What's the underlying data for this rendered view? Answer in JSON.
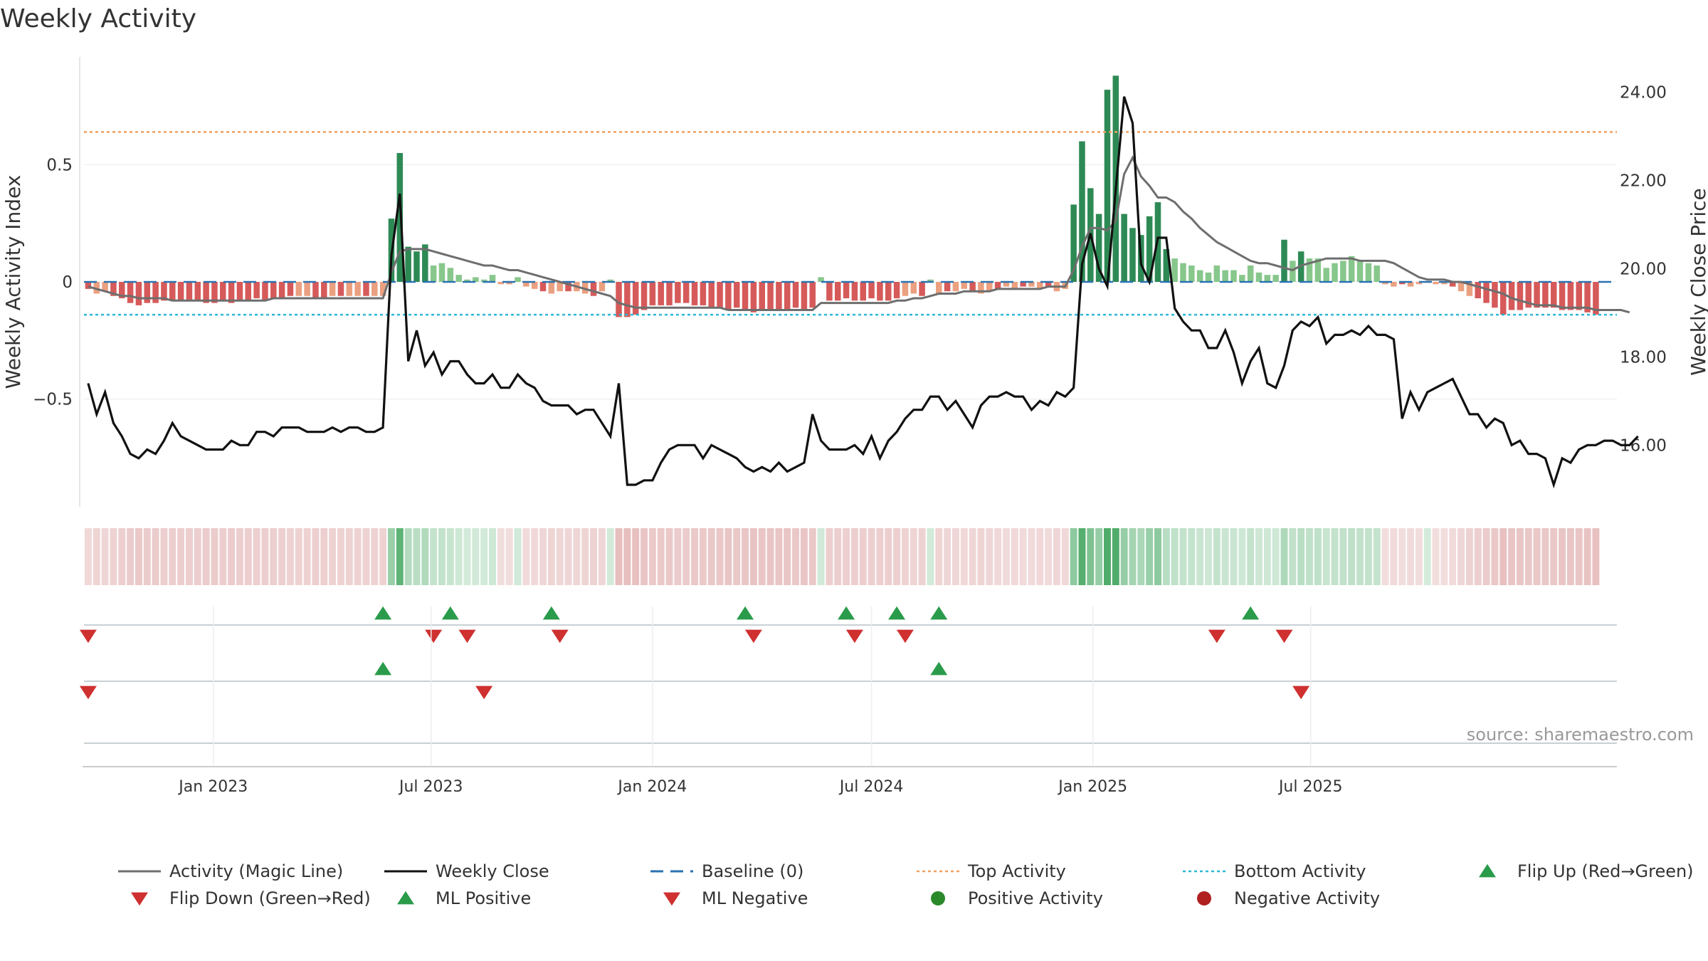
{
  "chart_data": {
    "type": "bar",
    "title": "Weekly Activity",
    "ylabel_left": "Weekly Activity Index",
    "ylabel_right": "Weekly Close Price",
    "source": "source: sharemaestro.com",
    "x_ticks": [
      "Jan 2023",
      "Jul 2023",
      "Jan 2024",
      "Jul 2024",
      "Jan 2025",
      "Jul 2025"
    ],
    "y_left_ticks": [
      "0.5",
      "0",
      "−0.5"
    ],
    "y_right_ticks": [
      "24.00",
      "22.00",
      "20.00",
      "18.00",
      "16.00"
    ],
    "y_left_range": [
      -0.96,
      0.96
    ],
    "y_right_range": [
      14.6,
      24.8
    ],
    "top_activity": 0.64,
    "bottom_activity": -0.14,
    "baseline": 0,
    "weeks": 182,
    "start_date": "2022-09-19",
    "activity_bars": [
      -0.03,
      -0.05,
      -0.04,
      -0.06,
      -0.07,
      -0.09,
      -0.1,
      -0.09,
      -0.09,
      -0.08,
      -0.08,
      -0.08,
      -0.08,
      -0.08,
      -0.09,
      -0.09,
      -0.08,
      -0.09,
      -0.08,
      -0.08,
      -0.07,
      -0.08,
      -0.07,
      -0.07,
      -0.06,
      -0.06,
      -0.06,
      -0.07,
      -0.07,
      -0.06,
      -0.06,
      -0.06,
      -0.06,
      -0.06,
      -0.06,
      -0.06,
      0.27,
      0.55,
      0.15,
      0.13,
      0.16,
      0.07,
      0.08,
      0.06,
      0.03,
      0.01,
      0.02,
      0.01,
      0.03,
      -0.01,
      -0.01,
      0.02,
      -0.02,
      -0.03,
      -0.04,
      -0.05,
      -0.04,
      -0.04,
      -0.04,
      -0.05,
      -0.06,
      -0.04,
      0.01,
      -0.15,
      -0.15,
      -0.14,
      -0.12,
      -0.1,
      -0.1,
      -0.1,
      -0.09,
      -0.09,
      -0.1,
      -0.1,
      -0.11,
      -0.11,
      -0.12,
      -0.11,
      -0.12,
      -0.13,
      -0.12,
      -0.12,
      -0.12,
      -0.12,
      -0.11,
      -0.12,
      -0.11,
      0.02,
      -0.08,
      -0.08,
      -0.07,
      -0.08,
      -0.08,
      -0.07,
      -0.08,
      -0.08,
      -0.07,
      -0.06,
      -0.05,
      -0.06,
      0.01,
      -0.05,
      -0.04,
      -0.04,
      -0.03,
      -0.04,
      -0.05,
      -0.04,
      -0.03,
      -0.02,
      -0.03,
      -0.02,
      -0.02,
      -0.03,
      -0.02,
      -0.04,
      -0.03,
      0.33,
      0.6,
      0.4,
      0.29,
      0.82,
      0.88,
      0.29,
      0.23,
      0.2,
      0.28,
      0.34,
      0.14,
      0.1,
      0.08,
      0.07,
      0.05,
      0.04,
      0.07,
      0.05,
      0.05,
      0.03,
      0.07,
      0.04,
      0.03,
      0.03,
      0.18,
      0.09,
      0.13,
      0.1,
      0.1,
      0.06,
      0.08,
      0.09,
      0.11,
      0.09,
      0.08,
      0.07,
      -0.01,
      -0.02,
      -0.01,
      -0.02,
      -0.01,
      0.0,
      -0.01,
      -0.01,
      -0.02,
      -0.04,
      -0.06,
      -0.07,
      -0.09,
      -0.11,
      -0.14,
      -0.12,
      -0.12,
      -0.11,
      -0.11,
      -0.11,
      -0.11,
      -0.12,
      -0.12,
      -0.12,
      -0.13,
      -0.14
    ],
    "magic_line": [
      -0.02,
      -0.03,
      -0.04,
      -0.05,
      -0.06,
      -0.06,
      -0.07,
      -0.07,
      -0.07,
      -0.07,
      -0.08,
      -0.08,
      -0.08,
      -0.08,
      -0.08,
      -0.08,
      -0.08,
      -0.08,
      -0.08,
      -0.08,
      -0.08,
      -0.08,
      -0.07,
      -0.07,
      -0.07,
      -0.07,
      -0.07,
      -0.07,
      -0.07,
      -0.07,
      -0.07,
      -0.07,
      -0.07,
      -0.07,
      -0.07,
      -0.07,
      0.04,
      0.13,
      0.14,
      0.14,
      0.14,
      0.13,
      0.12,
      0.11,
      0.1,
      0.09,
      0.08,
      0.07,
      0.07,
      0.06,
      0.05,
      0.05,
      0.04,
      0.03,
      0.02,
      0.01,
      0.0,
      -0.01,
      -0.02,
      -0.03,
      -0.04,
      -0.05,
      -0.06,
      -0.09,
      -0.1,
      -0.11,
      -0.11,
      -0.11,
      -0.11,
      -0.11,
      -0.11,
      -0.11,
      -0.11,
      -0.11,
      -0.11,
      -0.11,
      -0.12,
      -0.12,
      -0.12,
      -0.12,
      -0.12,
      -0.12,
      -0.12,
      -0.12,
      -0.12,
      -0.12,
      -0.12,
      -0.09,
      -0.09,
      -0.09,
      -0.09,
      -0.09,
      -0.09,
      -0.09,
      -0.09,
      -0.09,
      -0.08,
      -0.08,
      -0.07,
      -0.07,
      -0.06,
      -0.05,
      -0.05,
      -0.05,
      -0.04,
      -0.04,
      -0.04,
      -0.04,
      -0.03,
      -0.03,
      -0.03,
      -0.03,
      -0.03,
      -0.03,
      -0.02,
      -0.02,
      -0.02,
      0.05,
      0.15,
      0.23,
      0.23,
      0.22,
      0.26,
      0.46,
      0.53,
      0.45,
      0.41,
      0.36,
      0.36,
      0.34,
      0.3,
      0.27,
      0.23,
      0.2,
      0.17,
      0.15,
      0.13,
      0.11,
      0.09,
      0.08,
      0.08,
      0.07,
      0.06,
      0.05,
      0.07,
      0.08,
      0.09,
      0.1,
      0.1,
      0.1,
      0.1,
      0.09,
      0.09,
      0.09,
      0.09,
      0.08,
      0.06,
      0.04,
      0.02,
      0.01,
      0.01,
      0.01,
      0.0,
      0.0,
      -0.01,
      -0.02,
      -0.03,
      -0.04,
      -0.05,
      -0.07,
      -0.08,
      -0.09,
      -0.1,
      -0.1,
      -0.1,
      -0.11,
      -0.11,
      -0.11,
      -0.11,
      -0.12,
      -0.12,
      -0.12,
      -0.12,
      -0.13
    ],
    "weekly_close": [
      17.4,
      16.7,
      17.2,
      16.5,
      16.2,
      15.8,
      15.7,
      15.9,
      15.8,
      16.1,
      16.5,
      16.2,
      16.1,
      16.0,
      15.9,
      15.9,
      15.9,
      16.1,
      16.0,
      16.0,
      16.3,
      16.3,
      16.2,
      16.4,
      16.4,
      16.4,
      16.3,
      16.3,
      16.3,
      16.4,
      16.3,
      16.4,
      16.4,
      16.3,
      16.3,
      16.4,
      20.3,
      21.7,
      17.9,
      18.6,
      17.8,
      18.1,
      17.6,
      17.9,
      17.9,
      17.6,
      17.4,
      17.4,
      17.6,
      17.3,
      17.3,
      17.6,
      17.4,
      17.3,
      17.0,
      16.9,
      16.9,
      16.9,
      16.7,
      16.8,
      16.8,
      16.5,
      16.2,
      17.4,
      15.1,
      15.1,
      15.2,
      15.2,
      15.6,
      15.9,
      16.0,
      16.0,
      16.0,
      15.7,
      16.0,
      15.9,
      15.8,
      15.7,
      15.5,
      15.4,
      15.5,
      15.4,
      15.6,
      15.4,
      15.5,
      15.6,
      16.7,
      16.1,
      15.9,
      15.9,
      15.9,
      16.0,
      15.8,
      16.2,
      15.7,
      16.1,
      16.3,
      16.6,
      16.8,
      16.8,
      17.1,
      17.1,
      16.8,
      17.0,
      16.7,
      16.4,
      16.9,
      17.1,
      17.1,
      17.2,
      17.1,
      17.1,
      16.8,
      17.0,
      16.9,
      17.2,
      17.1,
      17.3,
      20.1,
      20.8,
      20.0,
      19.6,
      21.8,
      23.9,
      23.3,
      20.1,
      19.7,
      20.7,
      20.7,
      19.1,
      18.8,
      18.6,
      18.6,
      18.2,
      18.2,
      18.6,
      18.1,
      17.4,
      17.9,
      18.2,
      17.4,
      17.3,
      17.8,
      18.6,
      18.8,
      18.7,
      18.9,
      18.3,
      18.5,
      18.5,
      18.6,
      18.5,
      18.7,
      18.5,
      18.5,
      18.4,
      16.6,
      17.2,
      16.8,
      17.2,
      17.3,
      17.4,
      17.5,
      17.1,
      16.7,
      16.7,
      16.4,
      16.6,
      16.5,
      16.0,
      16.1,
      15.8,
      15.8,
      15.7,
      15.1,
      15.7,
      15.6,
      15.9,
      16.0,
      16.0,
      16.1,
      16.1,
      16.0,
      16.0,
      16.2
    ],
    "flip_up": [
      "2023-05-22",
      "2023-07-17",
      "2023-10-09",
      "2024-03-18",
      "2024-06-10",
      "2024-07-22",
      "2024-08-26",
      "2025-05-12"
    ],
    "flip_down": [
      "2022-09-19",
      "2023-07-03",
      "2023-07-31",
      "2023-10-16",
      "2024-03-25",
      "2024-06-17",
      "2024-07-29",
      "2025-04-14",
      "2025-06-09"
    ],
    "ml_positive": [
      "2023-05-22",
      "2024-08-26"
    ],
    "ml_negative": [
      "2022-09-19",
      "2023-08-14",
      "2025-06-23"
    ],
    "legend": [
      {
        "label": "Activity (Magic Line)",
        "style": "line",
        "color": "#6e6e6e"
      },
      {
        "label": "Weekly Close",
        "style": "line",
        "color": "#111111"
      },
      {
        "label": "Baseline (0)",
        "style": "dash",
        "color": "#2a72b0"
      },
      {
        "label": "Top Activity",
        "style": "dot",
        "color": "#f0a060"
      },
      {
        "label": "Bottom Activity",
        "style": "dot",
        "color": "#2bb8d6"
      },
      {
        "label": "Flip Up (Red→Green)",
        "style": "tri-up",
        "color": "#2a9b4a"
      },
      {
        "label": "Flip Down (Green→Red)",
        "style": "tri-down",
        "color": "#cf3030"
      },
      {
        "label": "ML Positive",
        "style": "tri-up",
        "color": "#2a9b4a"
      },
      {
        "label": "ML Negative",
        "style": "tri-down",
        "color": "#cf3030"
      },
      {
        "label": "Positive Activity",
        "style": "circle",
        "color": "#2a8a2a"
      },
      {
        "label": "Negative Activity",
        "style": "circle",
        "color": "#b02020"
      }
    ],
    "colors": {
      "pos_strong": "#2e8a55",
      "pos_light": "#88c78c",
      "neg_strong": "#d65a5a",
      "neg_light": "#eba080",
      "close": "#111111",
      "magic": "#6e6e6e",
      "top": "#f0a060",
      "bottom": "#2bb8d6",
      "baseline": "#2a72b0"
    }
  }
}
